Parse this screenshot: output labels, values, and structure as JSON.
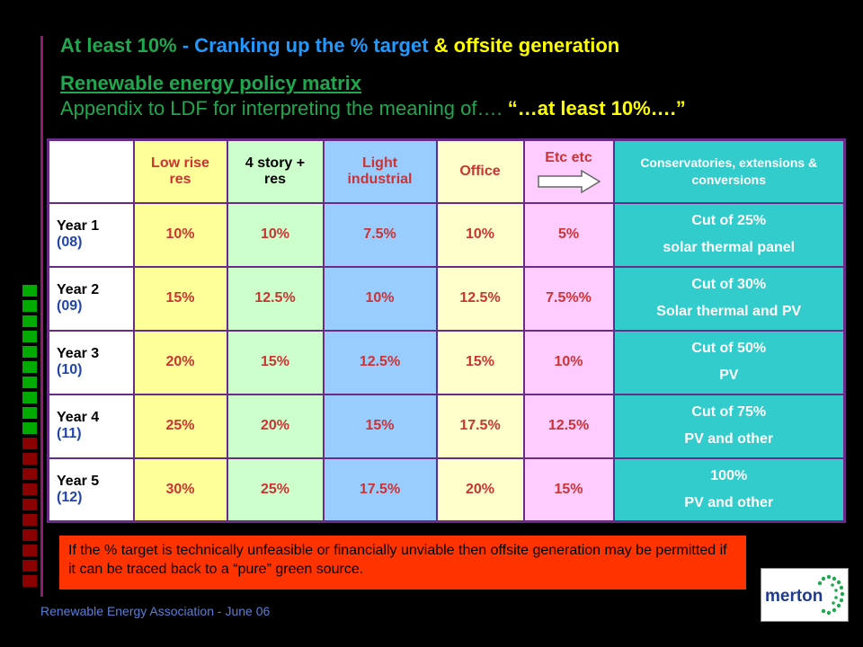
{
  "title": {
    "part1": "At least 10%",
    "part2": " - Cranking up the % target ",
    "part3": "& offsite generation",
    "colors": {
      "part1": "#1fa84e",
      "part2": "#2299ff",
      "part3": "#ffff00"
    }
  },
  "subtitle": {
    "line1": "Renewable energy policy matrix",
    "line2_prefix": "Appendix to LDF for interpreting the meaning of…. ",
    "line2_emph": "“…at least 10%….”"
  },
  "table": {
    "headers": [
      "",
      "Low rise res",
      "4 story + res",
      "Light industrial",
      "Office",
      "Etc etc",
      "Conservatories, extensions & conversions"
    ],
    "rows": [
      {
        "label": "Year 1",
        "year": "(08)",
        "values": [
          "10%",
          "10%",
          "7.5%",
          "10%",
          "5%"
        ],
        "extra_line1": "Cut of 25%",
        "extra_line2": "solar thermal panel"
      },
      {
        "label": "Year 2",
        "year": "(09)",
        "values": [
          "15%",
          "12.5%",
          "10%",
          "12.5%",
          "7.5%%"
        ],
        "extra_line1": "Cut of 30%",
        "extra_line2": "Solar thermal and PV"
      },
      {
        "label": "Year 3",
        "year": "(10)",
        "values": [
          "20%",
          "15%",
          "12.5%",
          "15%",
          "10%"
        ],
        "extra_line1": "Cut of 50%",
        "extra_line2": "PV"
      },
      {
        "label": "Year 4",
        "year": "(11)",
        "values": [
          "25%",
          "20%",
          "15%",
          "17.5%",
          "12.5%"
        ],
        "extra_line1": "Cut of 75%",
        "extra_line2": "PV and other"
      },
      {
        "label": "Year 5",
        "year": "(12)",
        "values": [
          "30%",
          "25%",
          "17.5%",
          "20%",
          "15%"
        ],
        "extra_line1": "100%",
        "extra_line2": "PV and other"
      }
    ]
  },
  "note": "If the % target is technically unfeasible or financially unviable then offsite generation may be permitted if it can be traced back to a “pure” green source.",
  "footer": "Renewable Energy Association - June 06",
  "logo": {
    "text": "merton",
    "icon": "swirl-icon"
  },
  "decor_squares": {
    "colors": [
      "#00aa00",
      "#00aa00",
      "#00aa00",
      "#00aa00",
      "#00aa00",
      "#00aa00",
      "#00aa00",
      "#00aa00",
      "#00aa00",
      "#00aa00",
      "#8b0000",
      "#8b0000",
      "#8b0000",
      "#8b0000",
      "#8b0000",
      "#8b0000",
      "#8b0000",
      "#8b0000",
      "#8b0000",
      "#8b0000"
    ]
  }
}
